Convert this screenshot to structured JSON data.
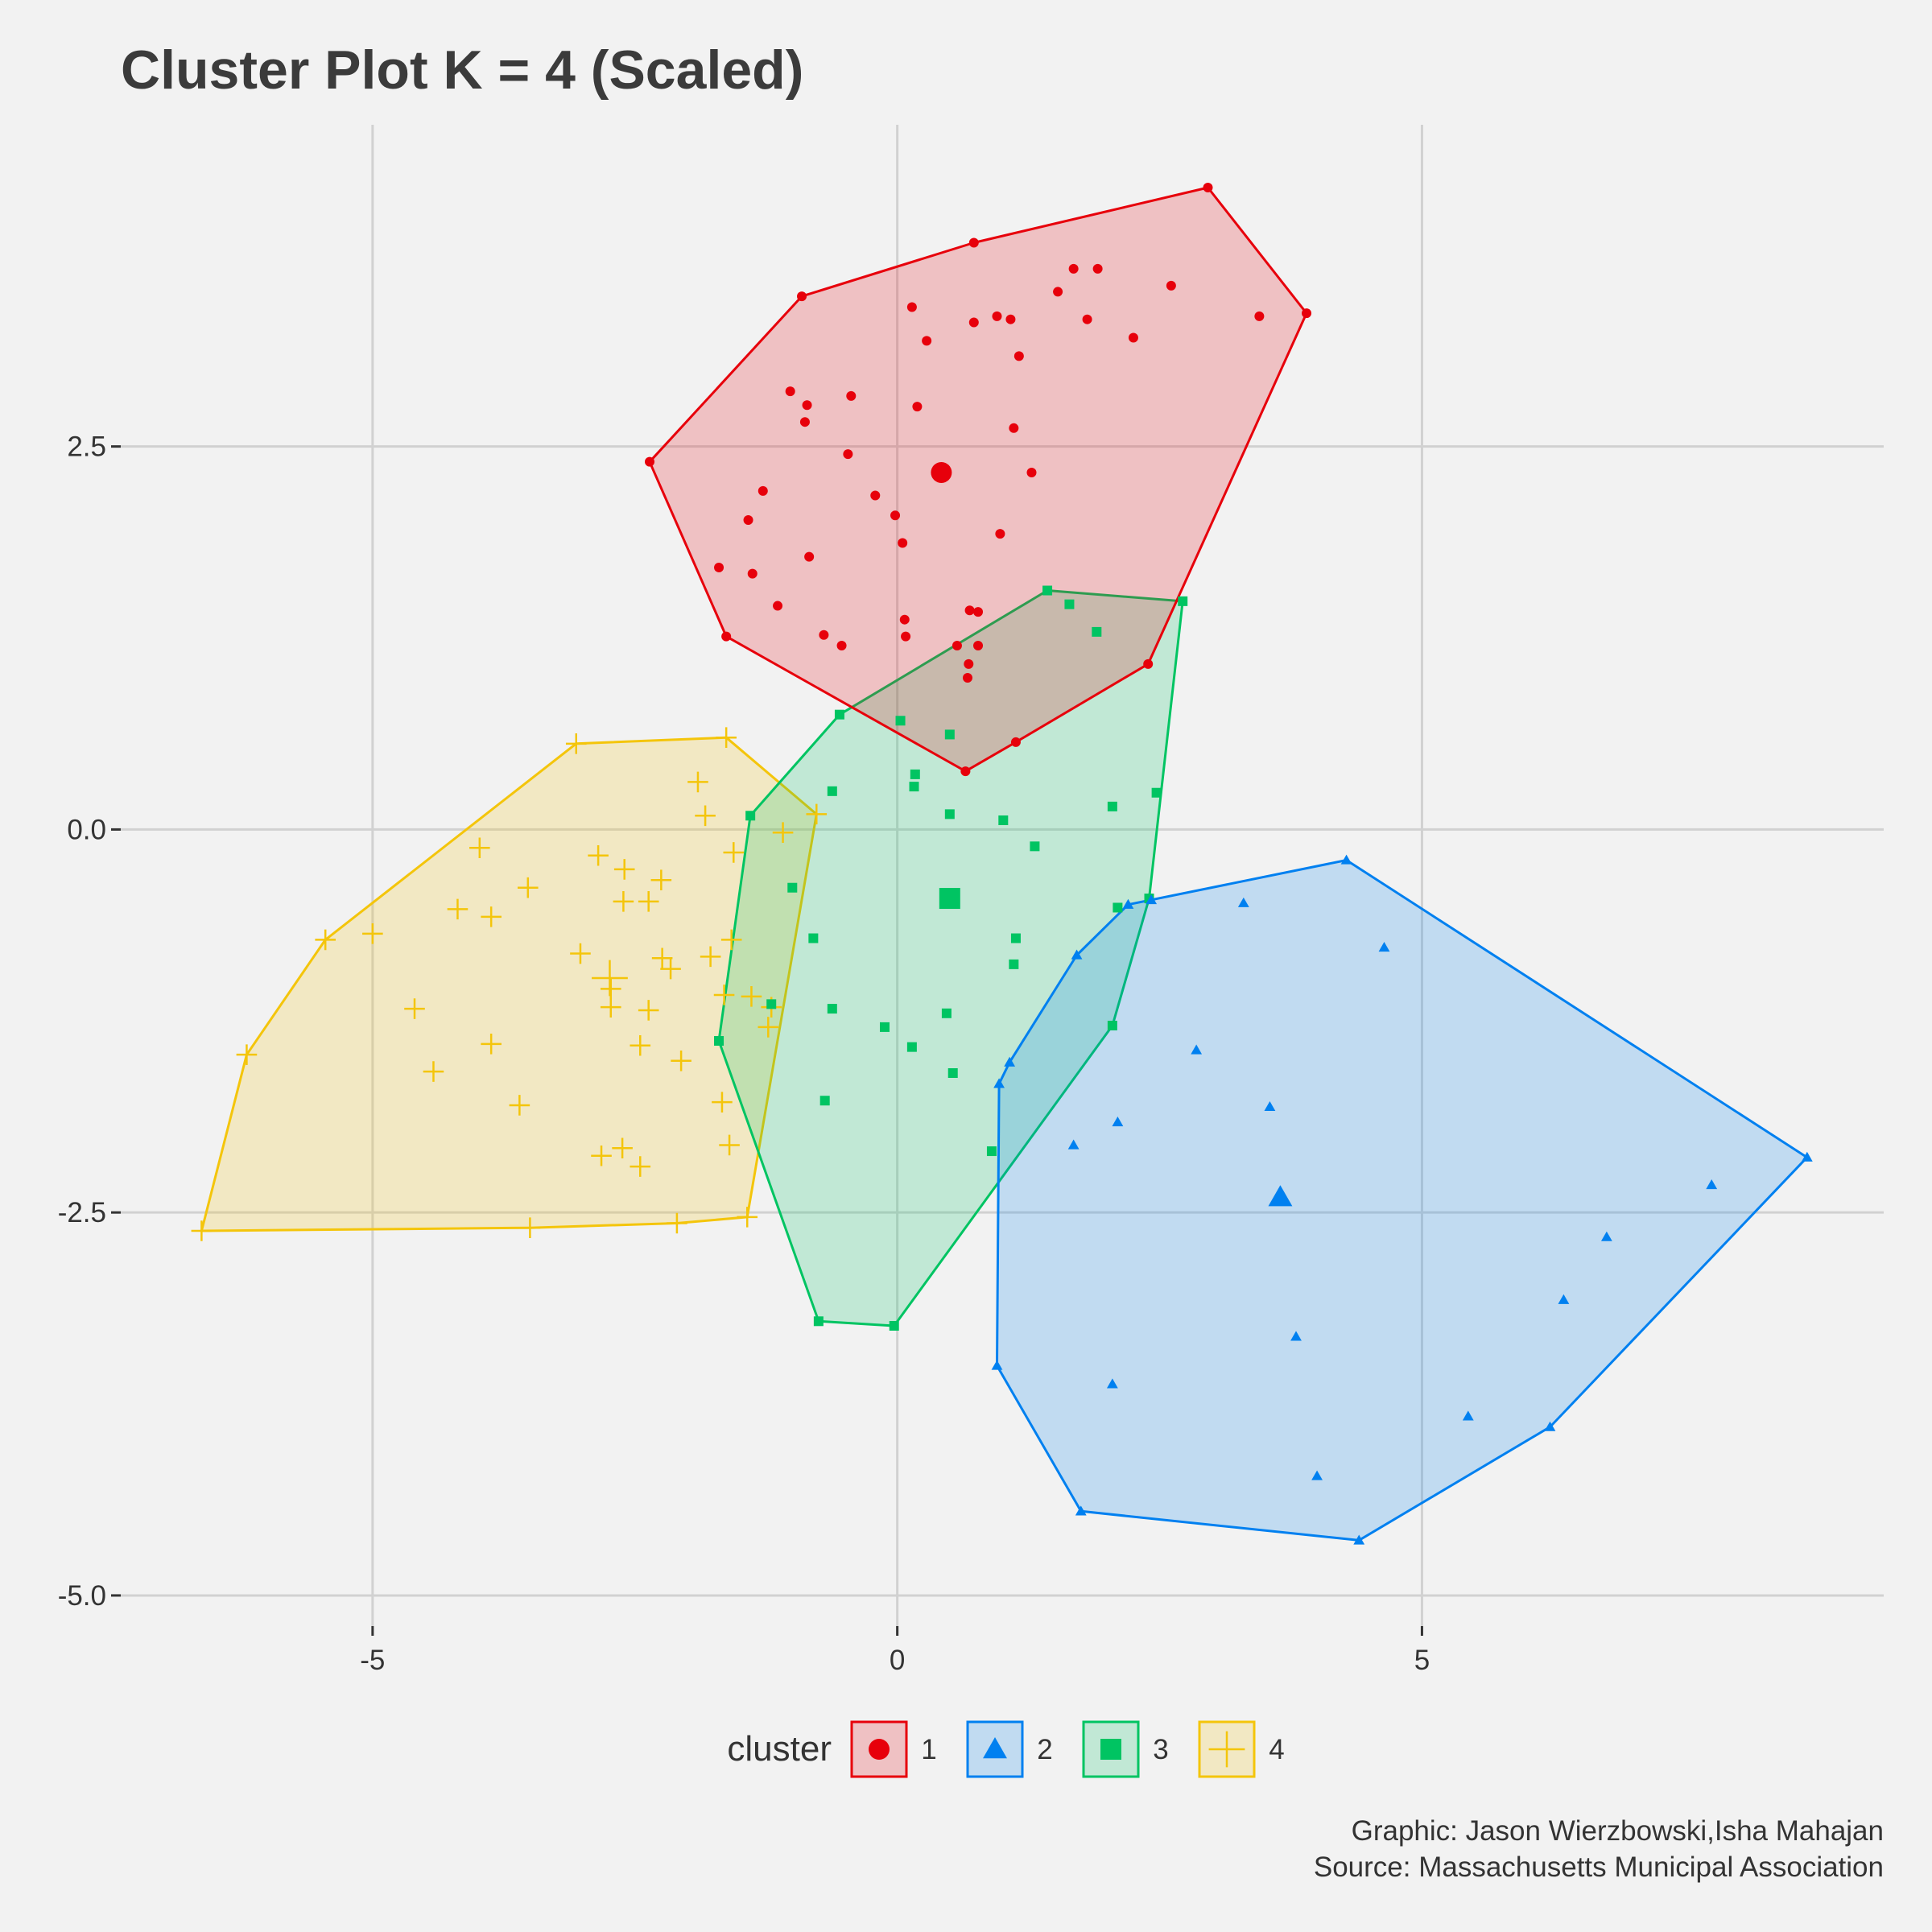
{
  "chart_data": {
    "type": "scatter",
    "title": "Cluster Plot K = 4 (Scaled)",
    "xlabel": "",
    "ylabel": "",
    "xlim": [
      -7.4,
      9.4
    ],
    "ylim": [
      -5.2,
      4.6
    ],
    "x_ticks": [
      {
        "value": -5,
        "label": "-5"
      },
      {
        "value": 0,
        "label": "0"
      },
      {
        "value": 5,
        "label": "5"
      }
    ],
    "y_ticks": [
      {
        "value": 2.5,
        "label": "2.5"
      },
      {
        "value": 0,
        "label": "0.0"
      },
      {
        "value": -2.5,
        "label": "-2.5"
      },
      {
        "value": -5,
        "label": "-5.0"
      }
    ],
    "grid": true,
    "legend": {
      "title": "cluster",
      "position": "bottom"
    },
    "series": [
      {
        "name": "1",
        "color": "#e7000b",
        "marker": "circle",
        "centroid": [
          0.42,
          2.33
        ],
        "points": [
          [
            -2.36,
            2.4
          ],
          [
            -0.91,
            3.48
          ],
          [
            0.73,
            3.83
          ],
          [
            2.96,
            4.19
          ],
          [
            3.9,
            3.37
          ],
          [
            2.39,
            1.08
          ],
          [
            1.13,
            0.57
          ],
          [
            0.65,
            0.38
          ],
          [
            -1.63,
            1.26
          ],
          [
            1.68,
            3.66
          ],
          [
            1.91,
            3.66
          ],
          [
            2.61,
            3.55
          ],
          [
            3.45,
            3.35
          ],
          [
            1.53,
            3.51
          ],
          [
            1.81,
            3.33
          ],
          [
            2.25,
            3.21
          ],
          [
            0.95,
            3.35
          ],
          [
            1.08,
            3.33
          ],
          [
            0.73,
            3.31
          ],
          [
            0.14,
            3.41
          ],
          [
            0.28,
            3.19
          ],
          [
            1.16,
            3.09
          ],
          [
            -1.02,
            2.86
          ],
          [
            -0.86,
            2.77
          ],
          [
            -0.44,
            2.83
          ],
          [
            0.19,
            2.76
          ],
          [
            -0.88,
            2.66
          ],
          [
            1.11,
            2.62
          ],
          [
            -0.47,
            2.45
          ],
          [
            1.28,
            2.33
          ],
          [
            -1.28,
            2.21
          ],
          [
            -0.21,
            2.18
          ],
          [
            -1.42,
            2.02
          ],
          [
            -0.02,
            2.05
          ],
          [
            0.05,
            1.87
          ],
          [
            0.98,
            1.93
          ],
          [
            -0.84,
            1.78
          ],
          [
            -1.7,
            1.71
          ],
          [
            -1.38,
            1.67
          ],
          [
            -1.14,
            1.46
          ],
          [
            0.69,
            1.43
          ],
          [
            0.77,
            1.42
          ],
          [
            0.07,
            1.37
          ],
          [
            -0.7,
            1.27
          ],
          [
            0.08,
            1.26
          ],
          [
            -0.53,
            1.2
          ],
          [
            0.57,
            1.2
          ],
          [
            0.77,
            1.2
          ],
          [
            0.68,
            1.08
          ],
          [
            0.67,
            0.99
          ]
        ]
      },
      {
        "name": "2",
        "color": "#0080f0",
        "marker": "triangle",
        "centroid": [
          3.65,
          -2.4
        ],
        "points": [
          [
            4.28,
            -0.2
          ],
          [
            8.67,
            -2.14
          ],
          [
            6.22,
            -3.9
          ],
          [
            4.4,
            -4.64
          ],
          [
            1.75,
            -4.45
          ],
          [
            0.95,
            -3.5
          ],
          [
            0.97,
            -1.66
          ],
          [
            1.07,
            -1.52
          ],
          [
            1.71,
            -0.82
          ],
          [
            2.2,
            -0.49
          ],
          [
            2.42,
            -0.46
          ],
          [
            3.3,
            -0.48
          ],
          [
            4.64,
            -0.77
          ],
          [
            2.85,
            -1.44
          ],
          [
            3.55,
            -1.81
          ],
          [
            2.1,
            -1.91
          ],
          [
            1.68,
            -2.06
          ],
          [
            7.76,
            -2.32
          ],
          [
            6.76,
            -2.66
          ],
          [
            6.35,
            -3.07
          ],
          [
            3.8,
            -3.31
          ],
          [
            2.05,
            -3.62
          ],
          [
            5.44,
            -3.83
          ],
          [
            4.0,
            -4.22
          ]
        ]
      },
      {
        "name": "3",
        "color": "#00c462",
        "marker": "square",
        "centroid": [
          0.5,
          -0.45
        ],
        "points": [
          [
            1.43,
            1.56
          ],
          [
            2.72,
            1.49
          ],
          [
            2.47,
            0.24
          ],
          [
            2.4,
            -0.45
          ],
          [
            2.05,
            -1.28
          ],
          [
            0.9,
            -2.1
          ],
          [
            -0.03,
            -3.24
          ],
          [
            -0.75,
            -3.21
          ],
          [
            -1.7,
            -1.38
          ],
          [
            -1.4,
            0.09
          ],
          [
            -0.55,
            0.75
          ],
          [
            1.64,
            1.47
          ],
          [
            1.9,
            1.29
          ],
          [
            0.03,
            0.71
          ],
          [
            0.5,
            0.62
          ],
          [
            0.17,
            0.36
          ],
          [
            0.16,
            0.28
          ],
          [
            -0.62,
            0.25
          ],
          [
            0.5,
            0.1
          ],
          [
            1.01,
            0.06
          ],
          [
            2.05,
            0.15
          ],
          [
            1.31,
            -0.11
          ],
          [
            -1.0,
            -0.38
          ],
          [
            -0.8,
            -0.71
          ],
          [
            1.13,
            -0.71
          ],
          [
            1.11,
            -0.88
          ],
          [
            -1.2,
            -1.14
          ],
          [
            -0.62,
            -1.17
          ],
          [
            0.47,
            -1.2
          ],
          [
            -0.12,
            -1.29
          ],
          [
            0.14,
            -1.42
          ],
          [
            0.53,
            -1.59
          ],
          [
            -0.69,
            -1.77
          ],
          [
            2.1,
            -0.51
          ]
        ]
      },
      {
        "name": "4",
        "color": "#f4c50b",
        "marker": "cross",
        "centroid": [
          -2.74,
          -0.97
        ],
        "points": [
          [
            -3.06,
            0.56
          ],
          [
            -1.63,
            0.6
          ],
          [
            -0.77,
            0.1
          ],
          [
            -1.43,
            -2.53
          ],
          [
            -2.1,
            -2.57
          ],
          [
            -3.5,
            -2.6
          ],
          [
            -6.63,
            -2.62
          ],
          [
            -6.2,
            -1.47
          ],
          [
            -5.45,
            -0.72
          ],
          [
            -5.0,
            -0.68
          ],
          [
            -1.9,
            0.31
          ],
          [
            -1.83,
            0.09
          ],
          [
            -1.09,
            -0.02
          ],
          [
            -3.98,
            -0.12
          ],
          [
            -2.85,
            -0.17
          ],
          [
            -1.56,
            -0.15
          ],
          [
            -2.6,
            -0.26
          ],
          [
            -2.25,
            -0.33
          ],
          [
            -3.52,
            -0.38
          ],
          [
            -2.61,
            -0.47
          ],
          [
            -2.37,
            -0.47
          ],
          [
            -4.19,
            -0.52
          ],
          [
            -3.87,
            -0.57
          ],
          [
            -1.58,
            -0.72
          ],
          [
            -3.02,
            -0.81
          ],
          [
            -2.24,
            -0.84
          ],
          [
            -1.78,
            -0.83
          ],
          [
            -2.16,
            -0.91
          ],
          [
            -2.73,
            -1.04
          ],
          [
            -1.39,
            -1.09
          ],
          [
            -1.65,
            -1.08
          ],
          [
            -1.2,
            -1.16
          ],
          [
            -4.6,
            -1.17
          ],
          [
            -2.73,
            -1.16
          ],
          [
            -2.37,
            -1.18
          ],
          [
            -1.23,
            -1.29
          ],
          [
            -3.87,
            -1.4
          ],
          [
            -2.45,
            -1.41
          ],
          [
            -2.06,
            -1.51
          ],
          [
            -4.42,
            -1.58
          ],
          [
            -1.67,
            -1.78
          ],
          [
            -3.6,
            -1.8
          ],
          [
            -1.6,
            -2.06
          ],
          [
            -2.62,
            -2.08
          ],
          [
            -2.82,
            -2.13
          ],
          [
            -2.45,
            -2.2
          ]
        ]
      }
    ]
  },
  "caption": {
    "line1": "Graphic: Jason Wierzbowski,Isha Mahajan",
    "line2": "Source: Massachusetts Municipal Association"
  }
}
